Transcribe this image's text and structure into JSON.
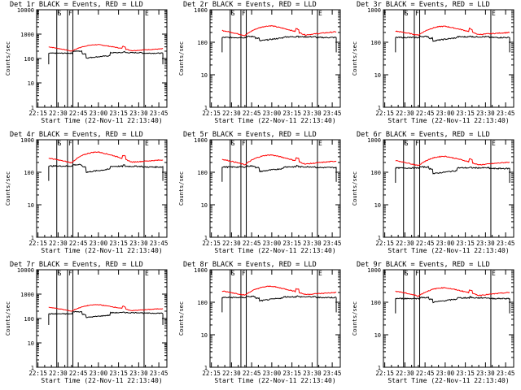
{
  "figure": {
    "xlabel": "Start Time (22-Nov-11 22:13:40)",
    "ylabel": "Counts/sec",
    "x_tick_labels": [
      "22:15",
      "22:30",
      "22:45",
      "23:00",
      "23:15",
      "23:30",
      "23:45"
    ],
    "y_tick_labels": [
      "1",
      "10",
      "100",
      "1000",
      "10000"
    ],
    "flag_letters": [
      "S",
      "F",
      "E"
    ],
    "colors": {
      "events": "#000000",
      "lld": "#ff0000"
    }
  },
  "chart_data": [
    {
      "type": "line",
      "title": "Det 1r BLACK = Events, RED = LLD",
      "xlabel": "Start Time (22-Nov-11 22:13:40)",
      "ylabel": "Counts/sec",
      "y_scale": "log",
      "ylim": [
        1,
        10000
      ],
      "x_tick_labels": [
        "22:15",
        "22:30",
        "22:45",
        "23:00",
        "23:15",
        "23:30",
        "23:45"
      ],
      "y_tick_labels": [
        "1",
        "10",
        "100",
        "1000",
        "10000"
      ],
      "vlines": [
        "22:29",
        "22:37",
        "22:41",
        "23:34"
      ],
      "flags": [
        {
          "label": "S",
          "at": "22:29"
        },
        {
          "label": "F",
          "at": "22:37"
        },
        {
          "label": "E",
          "at": "23:34"
        }
      ],
      "series": [
        {
          "name": "BLACK = Events",
          "color": "#000000",
          "baseline_before": 165,
          "gap_level": 200,
          "mid_level": 105,
          "peak": 190,
          "after_level": 165
        },
        {
          "name": "RED = LLD",
          "color": "#ff0000",
          "start": 300,
          "trough": 200,
          "peak": 370,
          "end": 250
        }
      ]
    },
    {
      "type": "line",
      "title": "Det 2r BLACK = Events, RED = LLD",
      "xlabel": "Start Time (22-Nov-11 22:13:40)",
      "ylabel": "Counts/sec",
      "y_scale": "log",
      "ylim": [
        1,
        1000
      ],
      "x_tick_labels": [
        "22:15",
        "22:30",
        "22:45",
        "23:00",
        "23:15",
        "23:30",
        "23:45"
      ],
      "y_tick_labels": [
        "1",
        "10",
        "100",
        "1000"
      ],
      "vlines": [
        "22:29",
        "22:37",
        "22:41",
        "23:34"
      ],
      "flags": [
        {
          "label": "S",
          "at": "22:29"
        },
        {
          "label": "F",
          "at": "22:37"
        },
        {
          "label": "E",
          "at": "23:34"
        }
      ],
      "series": [
        {
          "name": "BLACK = Events",
          "color": "#000000",
          "baseline_before": 140,
          "gap_level": 150,
          "mid_level": 110,
          "peak": 155,
          "after_level": 140
        },
        {
          "name": "RED = LLD",
          "color": "#ff0000",
          "start": 230,
          "trough": 160,
          "peak": 320,
          "end": 210
        }
      ]
    },
    {
      "type": "line",
      "title": "Det 3r BLACK = Events, RED = LLD",
      "xlabel": "Start Time (22-Nov-11 22:13:40)",
      "ylabel": "Counts/sec",
      "y_scale": "log",
      "ylim": [
        1,
        1000
      ],
      "x_tick_labels": [
        "22:15",
        "22:30",
        "22:45",
        "23:00",
        "23:15",
        "23:30",
        "23:45"
      ],
      "y_tick_labels": [
        "1",
        "10",
        "100",
        "1000"
      ],
      "vlines": [
        "22:29",
        "22:37",
        "22:41",
        "23:34"
      ],
      "flags": [
        {
          "label": "S",
          "at": "22:29"
        },
        {
          "label": "F",
          "at": "22:37"
        },
        {
          "label": "E",
          "at": "23:34"
        }
      ],
      "series": [
        {
          "name": "BLACK = Events",
          "color": "#000000",
          "baseline_before": 140,
          "gap_level": 150,
          "mid_level": 110,
          "peak": 155,
          "after_level": 140
        },
        {
          "name": "RED = LLD",
          "color": "#ff0000",
          "start": 220,
          "trough": 165,
          "peak": 310,
          "end": 200
        }
      ]
    },
    {
      "type": "line",
      "title": "Det 4r BLACK = Events, RED = LLD",
      "xlabel": "Start Time (22-Nov-11 22:13:40)",
      "ylabel": "Counts/sec",
      "y_scale": "log",
      "ylim": [
        1,
        1000
      ],
      "x_tick_labels": [
        "22:15",
        "22:30",
        "22:45",
        "23:00",
        "23:15",
        "23:30",
        "23:45"
      ],
      "y_tick_labels": [
        "1",
        "10",
        "100",
        "1000"
      ],
      "vlines": [
        "22:29",
        "22:37",
        "22:41",
        "23:34"
      ],
      "flags": [
        {
          "label": "S",
          "at": "22:29"
        },
        {
          "label": "F",
          "at": "22:37"
        },
        {
          "label": "E",
          "at": "23:34"
        }
      ],
      "series": [
        {
          "name": "BLACK = Events",
          "color": "#000000",
          "baseline_before": 155,
          "gap_level": 170,
          "mid_level": 100,
          "peak": 165,
          "after_level": 145
        },
        {
          "name": "RED = LLD",
          "color": "#ff0000",
          "start": 270,
          "trough": 195,
          "peak": 420,
          "end": 240
        }
      ]
    },
    {
      "type": "line",
      "title": "Det 5r BLACK = Events, RED = LLD",
      "xlabel": "Start Time (22-Nov-11 22:13:40)",
      "ylabel": "Counts/sec",
      "y_scale": "log",
      "ylim": [
        1,
        1000
      ],
      "x_tick_labels": [
        "22:15",
        "22:30",
        "22:45",
        "23:00",
        "23:15",
        "23:30",
        "23:45"
      ],
      "y_tick_labels": [
        "1",
        "10",
        "100",
        "1000"
      ],
      "vlines": [
        "22:29",
        "22:37",
        "22:41",
        "23:34"
      ],
      "flags": [
        {
          "label": "S",
          "at": "22:29"
        },
        {
          "label": "F",
          "at": "22:37"
        },
        {
          "label": "E",
          "at": "23:34"
        }
      ],
      "series": [
        {
          "name": "BLACK = Events",
          "color": "#000000",
          "baseline_before": 145,
          "gap_level": 155,
          "mid_level": 105,
          "peak": 160,
          "after_level": 140
        },
        {
          "name": "RED = LLD",
          "color": "#ff0000",
          "start": 250,
          "trough": 170,
          "peak": 340,
          "end": 220
        }
      ]
    },
    {
      "type": "line",
      "title": "Det 6r BLACK = Events, RED = LLD",
      "xlabel": "Start Time (22-Nov-11 22:13:40)",
      "ylabel": "Counts/sec",
      "y_scale": "log",
      "ylim": [
        1,
        1000
      ],
      "x_tick_labels": [
        "22:15",
        "22:30",
        "22:45",
        "23:00",
        "23:15",
        "23:30",
        "23:45"
      ],
      "y_tick_labels": [
        "1",
        "10",
        "100",
        "1000"
      ],
      "vlines": [
        "22:29",
        "22:37",
        "22:41",
        "23:34"
      ],
      "flags": [
        {
          "label": "S",
          "at": "22:29"
        },
        {
          "label": "F",
          "at": "22:37"
        },
        {
          "label": "E",
          "at": "23:34"
        }
      ],
      "series": [
        {
          "name": "BLACK = Events",
          "color": "#000000",
          "baseline_before": 135,
          "gap_level": 145,
          "mid_level": 90,
          "peak": 140,
          "after_level": 130
        },
        {
          "name": "RED = LLD",
          "color": "#ff0000",
          "start": 230,
          "trough": 160,
          "peak": 310,
          "end": 205
        }
      ]
    },
    {
      "type": "line",
      "title": "Det 7r BLACK = Events, RED = LLD",
      "xlabel": "Start Time (22-Nov-11 22:13:40)",
      "ylabel": "Counts/sec",
      "y_scale": "log",
      "ylim": [
        1,
        10000
      ],
      "x_tick_labels": [
        "22:15",
        "22:30",
        "22:45",
        "23:00",
        "23:15",
        "23:30",
        "23:45"
      ],
      "y_tick_labels": [
        "1",
        "10",
        "100",
        "1000",
        "10000"
      ],
      "vlines": [
        "22:29",
        "22:37",
        "22:41",
        "23:34"
      ],
      "flags": [
        {
          "label": "S",
          "at": "22:29"
        },
        {
          "label": "F",
          "at": "22:37"
        },
        {
          "label": "E",
          "at": "23:34"
        }
      ],
      "series": [
        {
          "name": "BLACK = Events",
          "color": "#000000",
          "baseline_before": 155,
          "gap_level": 190,
          "mid_level": 110,
          "peak": 185,
          "after_level": 165
        },
        {
          "name": "RED = LLD",
          "color": "#ff0000",
          "start": 290,
          "trough": 200,
          "peak": 370,
          "end": 255
        }
      ]
    },
    {
      "type": "line",
      "title": "Det 8r BLACK = Events, RED = LLD",
      "xlabel": "Start Time (22-Nov-11 22:13:40)",
      "ylabel": "Counts/sec",
      "y_scale": "log",
      "ylim": [
        1,
        1000
      ],
      "x_tick_labels": [
        "22:15",
        "22:30",
        "22:45",
        "23:00",
        "23:15",
        "23:30",
        "23:45"
      ],
      "y_tick_labels": [
        "1",
        "10",
        "100",
        "1000"
      ],
      "vlines": [
        "22:29",
        "22:37",
        "22:41",
        "23:34"
      ],
      "flags": [
        {
          "label": "S",
          "at": "22:29"
        },
        {
          "label": "F",
          "at": "22:37"
        },
        {
          "label": "E",
          "at": "23:34"
        }
      ],
      "series": [
        {
          "name": "BLACK = Events",
          "color": "#000000",
          "baseline_before": 140,
          "gap_level": 150,
          "mid_level": 110,
          "peak": 155,
          "after_level": 140
        },
        {
          "name": "RED = LLD",
          "color": "#ff0000",
          "start": 220,
          "trough": 165,
          "peak": 310,
          "end": 200
        }
      ]
    },
    {
      "type": "line",
      "title": "Det 9r BLACK = Events, RED = LLD",
      "xlabel": "Start Time (22-Nov-11 22:13:40)",
      "ylabel": "Counts/sec",
      "y_scale": "log",
      "ylim": [
        1,
        1000
      ],
      "x_tick_labels": [
        "22:15",
        "22:30",
        "22:45",
        "23:00",
        "23:15",
        "23:30",
        "23:45"
      ],
      "y_tick_labels": [
        "1",
        "10",
        "100",
        "1000"
      ],
      "vlines": [
        "22:29",
        "22:37",
        "22:41",
        "23:34"
      ],
      "flags": [
        {
          "label": "S",
          "at": "22:29"
        },
        {
          "label": "F",
          "at": "22:37"
        },
        {
          "label": "E",
          "at": "23:34"
        }
      ],
      "series": [
        {
          "name": "BLACK = Events",
          "color": "#000000",
          "baseline_before": 130,
          "gap_level": 140,
          "mid_level": 100,
          "peak": 145,
          "after_level": 130
        },
        {
          "name": "RED = LLD",
          "color": "#ff0000",
          "start": 220,
          "trough": 155,
          "peak": 280,
          "end": 200
        }
      ]
    }
  ]
}
